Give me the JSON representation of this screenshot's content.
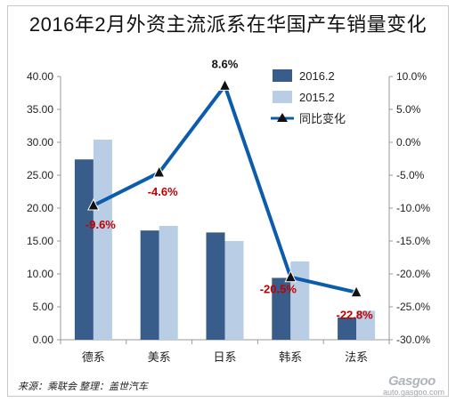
{
  "title": "2016年2月外资主流派系在华国产车销量变化",
  "footer": "来源：乘联会   整理：盖世汽车",
  "watermark": {
    "name": "Gasgoo",
    "url": "auto.gasgoo.com"
  },
  "chart_data": {
    "type": "bar",
    "categories": [
      "德系",
      "美系",
      "日系",
      "韩系",
      "法系"
    ],
    "series": [
      {
        "name": "2016.2",
        "type": "bar",
        "axis": "left",
        "color": "#385d8a",
        "values": [
          27.4,
          16.6,
          16.3,
          9.4,
          3.4
        ]
      },
      {
        "name": "2015.2",
        "type": "bar",
        "axis": "left",
        "color": "#b9cde5",
        "values": [
          30.4,
          17.3,
          15.0,
          11.9,
          4.4
        ]
      },
      {
        "name": "同比变化",
        "type": "line",
        "axis": "right",
        "color": "#0b5cad",
        "marker": "triangle",
        "values": [
          -9.6,
          -4.6,
          8.6,
          -20.5,
          -22.8
        ],
        "labels": [
          "-9.6%",
          "-4.6%",
          "8.6%",
          "-20.5%",
          "-22.8%"
        ]
      }
    ],
    "ylim": [
      0,
      40
    ],
    "yticks": [
      "0.00",
      "5.00",
      "10.00",
      "15.00",
      "20.00",
      "25.00",
      "30.00",
      "35.00",
      "40.00"
    ],
    "y2lim": [
      -30,
      10
    ],
    "y2ticks": [
      "-30.0%",
      "-25.0%",
      "-20.0%",
      "-15.0%",
      "-10.0%",
      "-5.0%",
      "0.0%",
      "5.0%",
      "10.0%"
    ],
    "legend": "top-right",
    "grid": false,
    "label_color": "#c00000"
  }
}
